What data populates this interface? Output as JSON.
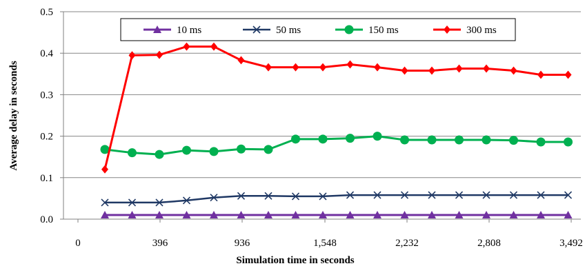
{
  "chart_data": {
    "type": "line",
    "title": "",
    "xlabel": "Simulation time in seconds",
    "ylabel": "Average delay in seconds",
    "ylim": [
      0,
      0.5
    ],
    "yticks": [
      "0.0",
      "0.1",
      "0.2",
      "0.3",
      "0.4",
      "0.5"
    ],
    "xtick_labels": [
      "0",
      "396",
      "936",
      "1,548",
      "2,232",
      "2,808",
      "3,492"
    ],
    "grid": "horizontal",
    "legend_position": "top",
    "series": [
      {
        "name": "10 ms",
        "color": "#7030a0",
        "marker": "triangle",
        "values": [
          0.01,
          0.01,
          0.01,
          0.01,
          0.01,
          0.01,
          0.01,
          0.01,
          0.01,
          0.01,
          0.01,
          0.01,
          0.01,
          0.01,
          0.01,
          0.01,
          0.01,
          0.01
        ]
      },
      {
        "name": "50 ms",
        "color": "#1f3864",
        "marker": "x",
        "values": [
          0.04,
          0.04,
          0.04,
          0.045,
          0.052,
          0.056,
          0.056,
          0.055,
          0.055,
          0.058,
          0.058,
          0.058,
          0.058,
          0.058,
          0.058,
          0.058,
          0.058,
          0.058
        ]
      },
      {
        "name": "150 ms",
        "color": "#00b050",
        "marker": "circle",
        "values": [
          0.168,
          0.16,
          0.156,
          0.166,
          0.163,
          0.169,
          0.168,
          0.193,
          0.193,
          0.195,
          0.2,
          0.191,
          0.191,
          0.191,
          0.191,
          0.19,
          0.186,
          0.186
        ]
      },
      {
        "name": "300 ms",
        "color": "#ff0000",
        "marker": "diamond",
        "values": [
          0.12,
          0.395,
          0.396,
          0.416,
          0.416,
          0.383,
          0.366,
          0.366,
          0.366,
          0.373,
          0.366,
          0.358,
          0.358,
          0.363,
          0.363,
          0.358,
          0.348,
          0.348
        ]
      }
    ]
  }
}
